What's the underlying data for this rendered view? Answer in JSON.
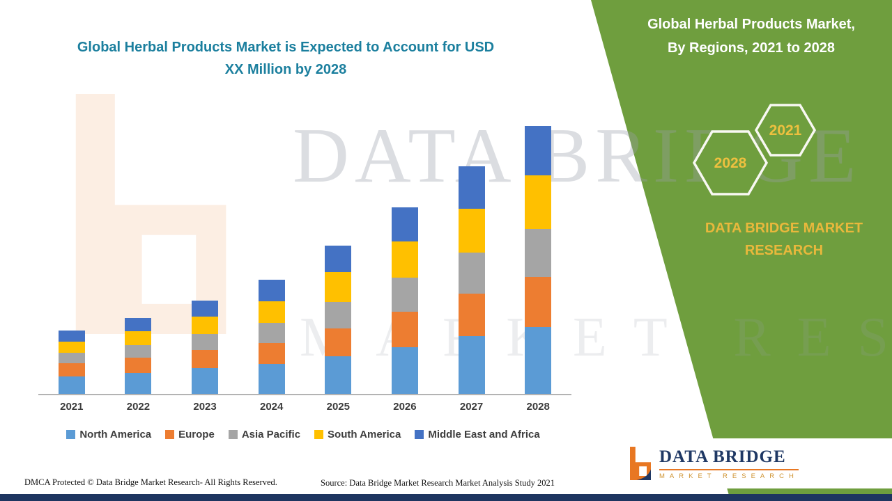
{
  "colors": {
    "panel_green": "#6f9e3e",
    "title_teal": "#1b7f9e",
    "gold": "#e9b83c",
    "navy": "#1f3864",
    "logo_orange": "#e87722"
  },
  "left": {
    "title_line1": "Global Herbal Products Market is Expected to Account for USD",
    "title_line2": "XX Million by 2028"
  },
  "panel": {
    "title_line1": "Global Herbal Products Market,",
    "title_line2": "By Regions, 2021 to 2028",
    "hex_back": "2028",
    "hex_front": "2021",
    "brand": "DATA BRIDGE MARKET RESEARCH"
  },
  "footer": {
    "dmca": "DMCA Protected © Data Bridge Market Research- All Rights Reserved.",
    "source": "Source: Data Bridge Market Research Market Analysis Study 2021"
  },
  "logo": {
    "name": "DATA BRIDGE",
    "subtitle": "MARKET RESEARCH"
  },
  "watermark": {
    "line1": "DATA BRIDGE",
    "line2": "MARKET RESEARCH"
  },
  "chart_data": {
    "type": "bar",
    "stacked": true,
    "title": "Global Herbal Products Market is Expected to Account for USD XX Million by 2028",
    "xlabel": "",
    "ylabel": "",
    "units": "USD Million (shown as XX, axis unlabeled; values estimated from bar heights)",
    "grid": false,
    "legend_position": "bottom",
    "categories": [
      "2021",
      "2022",
      "2023",
      "2024",
      "2025",
      "2026",
      "2027",
      "2028"
    ],
    "series": [
      {
        "name": "North America",
        "color": "#5b9bd5",
        "values": [
          25,
          30,
          36,
          42,
          53,
          66,
          82,
          95
        ]
      },
      {
        "name": "Europe",
        "color": "#ed7d31",
        "values": [
          18,
          21,
          26,
          30,
          40,
          50,
          60,
          70
        ]
      },
      {
        "name": "Asia Pacific",
        "color": "#a5a5a5",
        "values": [
          15,
          18,
          23,
          28,
          37,
          48,
          58,
          68
        ]
      },
      {
        "name": "South America",
        "color": "#ffc000",
        "values": [
          16,
          20,
          24,
          31,
          42,
          52,
          62,
          76
        ]
      },
      {
        "name": "Middle East and Africa",
        "color": "#4472c4",
        "values": [
          16,
          18,
          23,
          30,
          38,
          48,
          60,
          70
        ]
      }
    ]
  }
}
